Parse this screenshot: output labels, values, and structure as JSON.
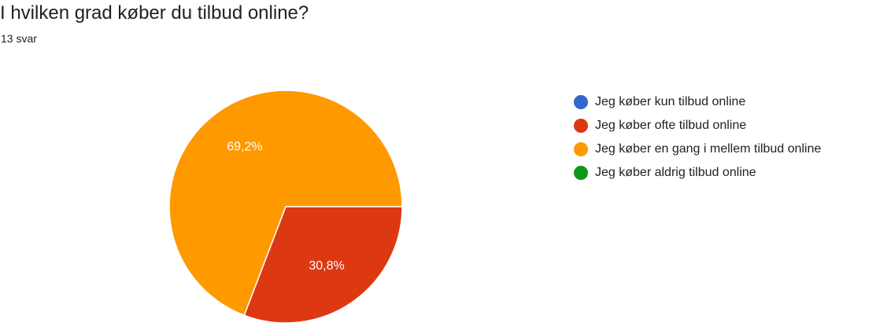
{
  "header": {
    "title": "I hvilken grad køber du tilbud online?",
    "response_count": "13 svar"
  },
  "colors": {
    "blue": "#3366cc",
    "red": "#dc3912",
    "orange": "#ff9900",
    "green": "#109618"
  },
  "chart_data": {
    "type": "pie",
    "title": "I hvilken grad køber du tilbud online?",
    "subtitle": "13 svar",
    "legend_position": "right",
    "series": [
      {
        "name": "Jeg køber kun tilbud online",
        "value": 0,
        "label": "",
        "color": "#3366cc"
      },
      {
        "name": "Jeg køber ofte tilbud online",
        "value": 30.8,
        "label": "30,8%",
        "color": "#dc3912"
      },
      {
        "name": "Jeg køber en gang i mellem tilbud online",
        "value": 69.2,
        "label": "69,2%",
        "color": "#ff9900"
      },
      {
        "name": "Jeg køber aldrig tilbud online",
        "value": 0,
        "label": "",
        "color": "#109618"
      }
    ]
  }
}
